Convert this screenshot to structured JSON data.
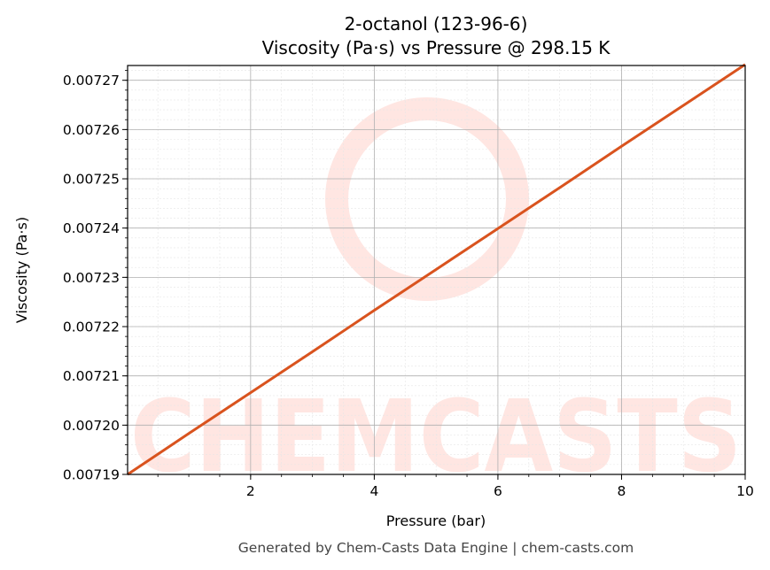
{
  "chart_data": {
    "type": "line",
    "title": "2-octanol (123-96-6)",
    "subtitle": "Viscosity (Pa·s) vs Pressure @ 298.15 K",
    "xlabel": "Pressure (bar)",
    "ylabel": "Viscosity (Pa·s)",
    "xlim": [
      0.01,
      10
    ],
    "ylim": [
      0.00719,
      0.007273
    ],
    "x_ticks": [
      2,
      4,
      6,
      8,
      10
    ],
    "x_tick_labels": [
      "2",
      "4",
      "6",
      "8",
      "10"
    ],
    "y_ticks": [
      0.00719,
      0.0072,
      0.00721,
      0.00722,
      0.00723,
      0.00724,
      0.00725,
      0.00726,
      0.00727
    ],
    "y_tick_labels": [
      "0.00719",
      "0.00720",
      "0.00721",
      "0.00722",
      "0.00723",
      "0.00724",
      "0.00725",
      "0.00726",
      "0.00727"
    ],
    "grid": true,
    "series": [
      {
        "color": "#d9531e",
        "x": [
          0.01,
          1,
          2,
          3,
          4,
          5,
          6,
          7,
          8,
          9,
          10
        ],
        "y": [
          0.00719,
          0.0071983,
          0.0072066,
          0.0072149,
          0.0072233,
          0.0072316,
          0.0072399,
          0.0072482,
          0.0072566,
          0.0072649,
          0.0072732
        ]
      }
    ]
  },
  "watermark": {
    "text": "CHEMCASTS",
    "color": "#ffe6e2"
  },
  "footer": "Generated by Chem-Casts Data Engine | chem-casts.com"
}
